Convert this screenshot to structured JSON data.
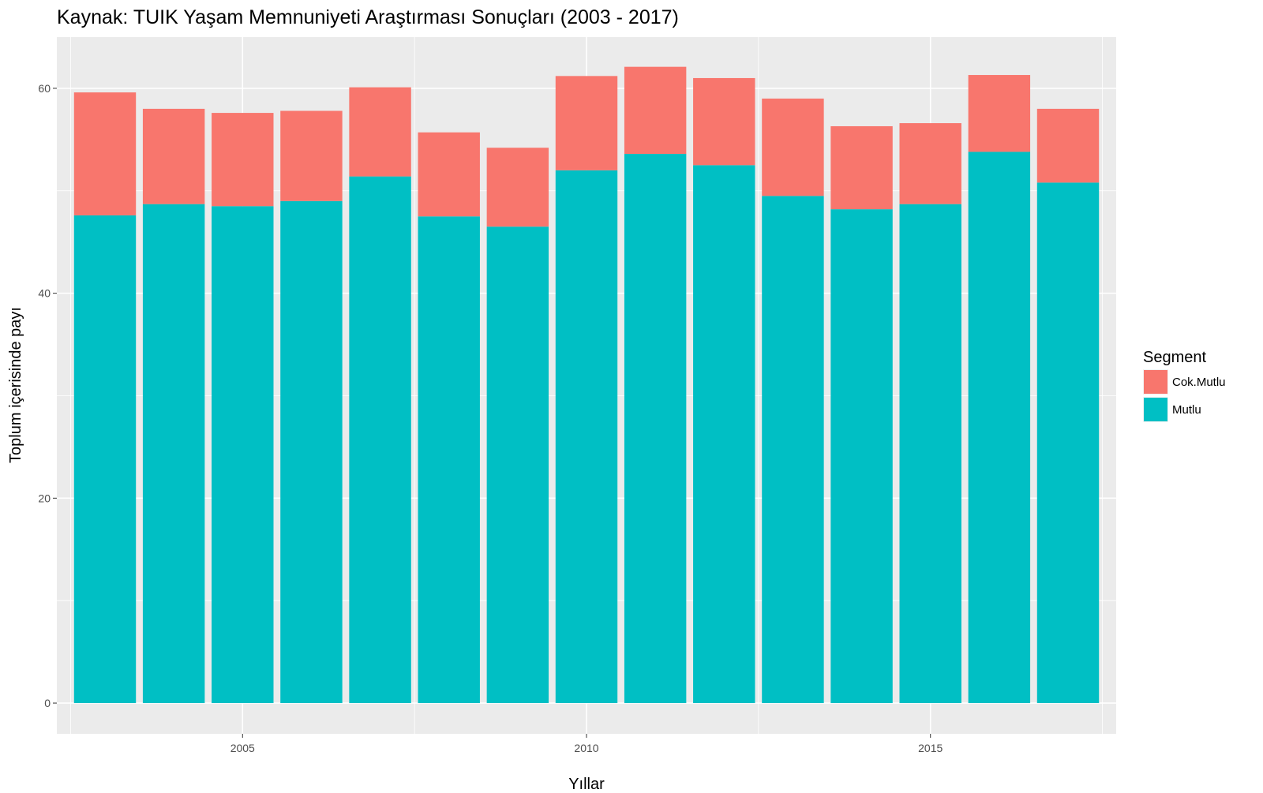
{
  "chart_data": {
    "type": "bar",
    "stacked": true,
    "title": "Kaynak: TUIK Yaşam Memnuniyeti Araştırması Sonuçları (2003 - 2017)",
    "xlabel": "Yıllar",
    "ylabel": "Toplum içerisinde payı",
    "x": [
      2003,
      2004,
      2005,
      2006,
      2007,
      2008,
      2009,
      2010,
      2011,
      2012,
      2013,
      2014,
      2015,
      2016,
      2017
    ],
    "series": [
      {
        "name": "Mutlu",
        "color": "#00BFC4",
        "values": [
          47.6,
          48.7,
          48.5,
          49.0,
          51.4,
          47.5,
          46.5,
          52.0,
          53.6,
          52.5,
          49.5,
          48.2,
          48.7,
          53.8,
          50.8
        ]
      },
      {
        "name": "Cok.Mutlu",
        "color": "#F8766D",
        "values": [
          12.0,
          9.3,
          9.1,
          8.8,
          8.7,
          8.2,
          7.7,
          9.2,
          8.5,
          8.5,
          9.5,
          8.1,
          7.9,
          7.5,
          7.2
        ]
      }
    ],
    "xlim": [
      2002.3,
      2017.7
    ],
    "ylim": [
      -3,
      65
    ],
    "x_ticks": [
      2005,
      2010,
      2015
    ],
    "y_ticks": [
      0,
      20,
      40,
      60
    ],
    "grid": true,
    "legend": {
      "title": "Segment",
      "position": "right",
      "entries": [
        {
          "label": "Cok.Mutlu",
          "color": "#F8766D"
        },
        {
          "label": "Mutlu",
          "color": "#00BFC4"
        }
      ]
    }
  }
}
